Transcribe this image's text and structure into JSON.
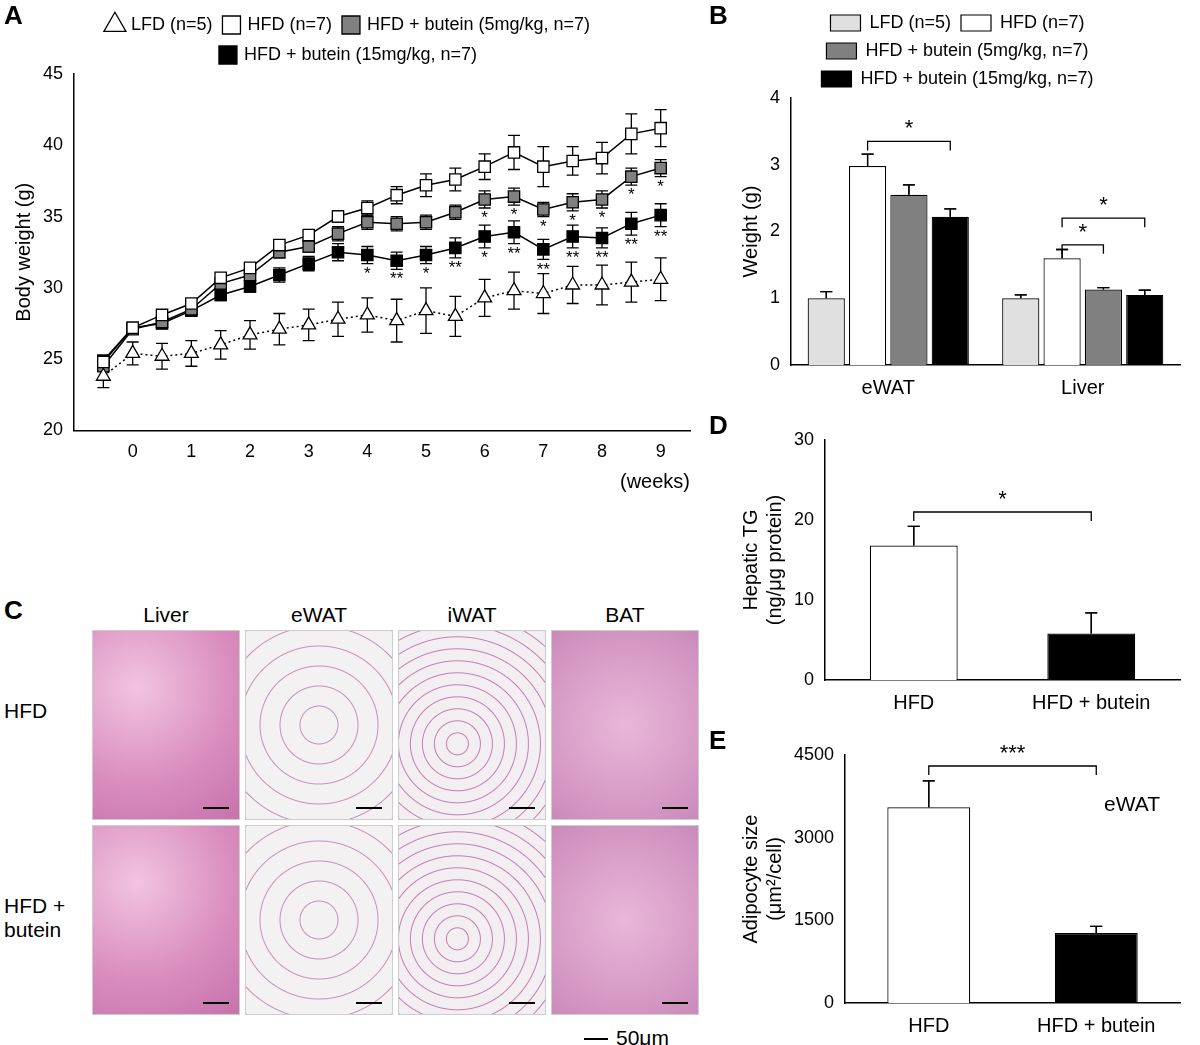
{
  "chart_data": [
    {
      "panel": "A",
      "type": "line",
      "x": [
        -0.5,
        0,
        0.5,
        1,
        1.5,
        2,
        2.5,
        3,
        3.5,
        4,
        4.5,
        5,
        5.5,
        6,
        6.5,
        7,
        7.5,
        8,
        8.5,
        9
      ],
      "xlim": [
        -1,
        9.5
      ],
      "xticks": [
        0,
        1,
        2,
        3,
        4,
        5,
        6,
        7,
        8,
        9
      ],
      "x_label": "(weeks)",
      "ylim": [
        20,
        45
      ],
      "yticks": [
        20,
        25,
        30,
        35,
        40,
        45
      ],
      "y_label": "Body weight (g)",
      "grid": false,
      "legend": "top",
      "series": [
        {
          "name": "LFD (n=5)",
          "color": "#ffffff",
          "marker": "triangle",
          "line_style": "dotted",
          "values": [
            23.8,
            25.4,
            25.2,
            25.4,
            26.0,
            26.7,
            27.1,
            27.4,
            27.8,
            28.1,
            27.7,
            28.4,
            28.0,
            29.3,
            29.8,
            29.6,
            30.2,
            30.2,
            30.4,
            30.6
          ],
          "errors": [
            0.8,
            0.8,
            0.9,
            0.9,
            1.0,
            1.0,
            1.1,
            1.1,
            1.2,
            1.2,
            1.5,
            1.6,
            1.4,
            1.3,
            1.3,
            1.4,
            1.3,
            1.4,
            1.4,
            1.5
          ]
        },
        {
          "name": "HFD (n=7)",
          "color": "#ffffff",
          "marker": "square",
          "line_style": "solid",
          "values": [
            24.8,
            27.2,
            28.1,
            28.9,
            30.7,
            31.4,
            33.0,
            33.7,
            35.0,
            35.6,
            36.5,
            37.2,
            37.6,
            38.5,
            39.5,
            38.5,
            38.9,
            39.1,
            40.8,
            41.2
          ],
          "errors": [
            0.3,
            0.3,
            0.3,
            0.3,
            0.3,
            0.3,
            0.3,
            0.3,
            0.4,
            0.5,
            0.6,
            0.8,
            0.8,
            0.9,
            1.2,
            1.4,
            1.0,
            1.1,
            1.4,
            1.3
          ]
        },
        {
          "name": "HFD + butein (5mg/kg, n=7)",
          "color": "#808080",
          "marker": "square",
          "line_style": "solid",
          "values": [
            24.5,
            27.1,
            27.6,
            28.5,
            30.3,
            30.9,
            32.5,
            32.9,
            33.8,
            34.6,
            34.5,
            34.6,
            35.3,
            36.2,
            36.4,
            35.5,
            36.0,
            36.2,
            37.8,
            38.4
          ],
          "errors": [
            0.3,
            0.3,
            0.3,
            0.3,
            0.3,
            0.4,
            0.4,
            0.4,
            0.5,
            0.5,
            0.5,
            0.5,
            0.5,
            0.6,
            0.6,
            0.5,
            0.6,
            0.6,
            0.6,
            0.6
          ]
        },
        {
          "name": "HFD + butein (15mg/kg, n=7)",
          "color": "#000000",
          "marker": "square",
          "line_style": "solid",
          "values": [
            24.9,
            27.2,
            27.5,
            28.4,
            29.5,
            30.1,
            30.9,
            31.7,
            32.5,
            32.3,
            31.9,
            32.3,
            32.8,
            33.6,
            33.9,
            32.7,
            33.6,
            33.5,
            34.5,
            35.1
          ],
          "errors": [
            0.3,
            0.3,
            0.3,
            0.3,
            0.4,
            0.4,
            0.5,
            0.5,
            0.6,
            0.6,
            0.6,
            0.6,
            0.7,
            0.8,
            0.8,
            0.7,
            0.8,
            0.7,
            0.8,
            0.8
          ]
        }
      ],
      "annotations": [
        {
          "series": "HFD + butein (5mg/kg, n=7)",
          "x": 6,
          "text": "*"
        },
        {
          "series": "HFD + butein (5mg/kg, n=7)",
          "x": 6.5,
          "text": "*"
        },
        {
          "series": "HFD + butein (5mg/kg, n=7)",
          "x": 7,
          "text": "*"
        },
        {
          "series": "HFD + butein (5mg/kg, n=7)",
          "x": 7.5,
          "text": "*"
        },
        {
          "series": "HFD + butein (5mg/kg, n=7)",
          "x": 8,
          "text": "*"
        },
        {
          "series": "HFD + butein (5mg/kg, n=7)",
          "x": 8.5,
          "text": "*"
        },
        {
          "series": "HFD + butein (5mg/kg, n=7)",
          "x": 9,
          "text": "*"
        },
        {
          "series": "HFD + butein (15mg/kg, n=7)",
          "x": 4,
          "text": "*"
        },
        {
          "series": "HFD + butein (15mg/kg, n=7)",
          "x": 4.5,
          "text": "**"
        },
        {
          "series": "HFD + butein (15mg/kg, n=7)",
          "x": 5,
          "text": "*"
        },
        {
          "series": "HFD + butein (15mg/kg, n=7)",
          "x": 5.5,
          "text": "**"
        },
        {
          "series": "HFD + butein (15mg/kg, n=7)",
          "x": 6,
          "text": "*"
        },
        {
          "series": "HFD + butein (15mg/kg, n=7)",
          "x": 6.5,
          "text": "**"
        },
        {
          "series": "HFD + butein (15mg/kg, n=7)",
          "x": 7,
          "text": "**"
        },
        {
          "series": "HFD + butein (15mg/kg, n=7)",
          "x": 7.5,
          "text": "**"
        },
        {
          "series": "HFD + butein (15mg/kg, n=7)",
          "x": 8,
          "text": "**"
        },
        {
          "series": "HFD + butein (15mg/kg, n=7)",
          "x": 8.5,
          "text": "**"
        },
        {
          "series": "HFD + butein (15mg/kg, n=7)",
          "x": 9,
          "text": "**"
        }
      ]
    },
    {
      "panel": "B",
      "type": "bar",
      "categories": [
        "eWAT",
        "Liver"
      ],
      "ylim": [
        0,
        4
      ],
      "yticks": [
        0,
        1,
        2,
        3,
        4
      ],
      "y_label": "Weight (g)",
      "grid": false,
      "legend": "top",
      "series": [
        {
          "name": "LFD (n=5)",
          "color": "#e0e0e0",
          "values": [
            1.0,
            1.0
          ],
          "errors": [
            0.1,
            0.05
          ]
        },
        {
          "name": "HFD (n=7)",
          "color": "#ffffff",
          "values": [
            2.98,
            1.6
          ],
          "errors": [
            0.18,
            0.13
          ]
        },
        {
          "name": "HFD + butein (5mg/kg, n=7)",
          "color": "#808080",
          "values": [
            2.55,
            1.13
          ],
          "errors": [
            0.15,
            0.03
          ]
        },
        {
          "name": "HFD + butein (15mg/kg, n=7)",
          "color": "#000000",
          "values": [
            2.22,
            1.05
          ],
          "errors": [
            0.12,
            0.07
          ]
        }
      ],
      "brackets": [
        {
          "category": "eWAT",
          "from": "HFD (n=7)",
          "to": "HFD + butein (15mg/kg, n=7)",
          "y": 3.35,
          "text": "*"
        },
        {
          "category": "Liver",
          "from": "HFD (n=7)",
          "to": "HFD + butein (5mg/kg, n=7)",
          "y": 1.8,
          "text": "*"
        },
        {
          "category": "Liver",
          "from": "HFD (n=7)",
          "to": "HFD + butein (15mg/kg, n=7)",
          "y": 2.2,
          "text": "*"
        }
      ]
    },
    {
      "panel": "D",
      "type": "bar",
      "categories": [
        "HFD",
        "HFD + butein"
      ],
      "values": [
        16.8,
        5.8
      ],
      "errors": [
        2.4,
        2.6
      ],
      "colors": [
        "#ffffff",
        "#000000"
      ],
      "ylim": [
        0,
        30
      ],
      "yticks": [
        0,
        10,
        20,
        30
      ],
      "y_label": [
        "Hepatic TG",
        "(ng/μg protein)"
      ],
      "grid": false,
      "brackets": [
        {
          "from": "HFD",
          "to": "HFD + butein",
          "y": 21,
          "text": "*"
        }
      ]
    },
    {
      "panel": "E",
      "type": "bar",
      "categories": [
        "HFD",
        "HFD + butein"
      ],
      "values": [
        3550,
        1270
      ],
      "errors": [
        480,
        120
      ],
      "colors": [
        "#ffffff",
        "#000000"
      ],
      "ylim": [
        0,
        4500
      ],
      "yticks": [
        0,
        1500,
        3000,
        4500
      ],
      "y_label": [
        "Adipocyte size",
        "(μm²/cell)"
      ],
      "grid": false,
      "annotations": [
        {
          "text": "eWAT"
        }
      ],
      "brackets": [
        {
          "from": "HFD",
          "to": "HFD + butein",
          "y": 4300,
          "text": "***"
        }
      ]
    }
  ],
  "histology": {
    "panel": "C",
    "columns": [
      "Liver",
      "eWAT",
      "iWAT",
      "BAT"
    ],
    "rows": [
      "HFD",
      "HFD + butein"
    ],
    "scale_bar": "50μm"
  }
}
